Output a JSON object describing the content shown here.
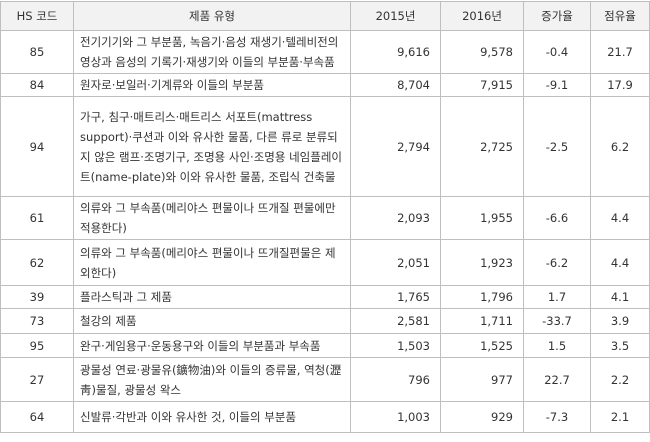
{
  "table": {
    "header": [
      "HS 코드",
      "제품 유형",
      "2015년",
      "2016년",
      "증가율",
      "점유율"
    ],
    "rows": [
      [
        "85",
        "전기기기와 그 부분품, 녹음기·음성 재생기·텔레비전의 영상과 음성의 기록기·재생기와 이들의 부분품·부속품",
        "9,616",
        "9,578",
        "-0.4",
        "21.7"
      ],
      [
        "84",
        "원자로·보일러·기계류와 이들의 부분품",
        "8,704",
        "7,915",
        "-9.1",
        "17.9"
      ],
      [
        "94",
        "가구, 침구·매트리스·매트리스 서포트(mattress support)·쿠션과 이와 유사한 물품, 다른 류로 분류되지 않은 램프·조명기구, 조명용 사인·조명용 네임플레이트(name-plate)와 이와 유사한 물품, 조립식 건축물",
        "2,794",
        "2,725",
        "-2.5",
        "6.2"
      ],
      [
        "61",
        "의류와 그 부속품(메리야스 편물이나 뜨개질 편물에만 적용한다)",
        "2,093",
        "1,955",
        "-6.6",
        "4.4"
      ],
      [
        "62",
        "의류와 그 부속품(메리야스 편물이나 뜨개질편물은 제외한다)",
        "2,051",
        "1,923",
        "-6.2",
        "4.4"
      ],
      [
        "39",
        "플라스틱과 그 제품",
        "1,765",
        "1,796",
        "1.7",
        "4.1"
      ],
      [
        "73",
        "철강의 제품",
        "2,581",
        "1,711",
        "-33.7",
        "3.9"
      ],
      [
        "95",
        "완구·게임용구·운동용구와 이들의 부분품과 부속품",
        "1,503",
        "1,525",
        "1.5",
        "3.5"
      ],
      [
        "27",
        "광물성 연료·광물유(鑛物油)와 이들의 증류물, 역청(瀝靑)물질, 광물성 왁스",
        "796",
        "977",
        "22.7",
        "2.2"
      ],
      [
        "64",
        "신발류·각반과 이와 유사한 것, 이들의 부분품",
        "1,003",
        "929",
        "-7.3",
        "2.1"
      ]
    ]
  }
}
